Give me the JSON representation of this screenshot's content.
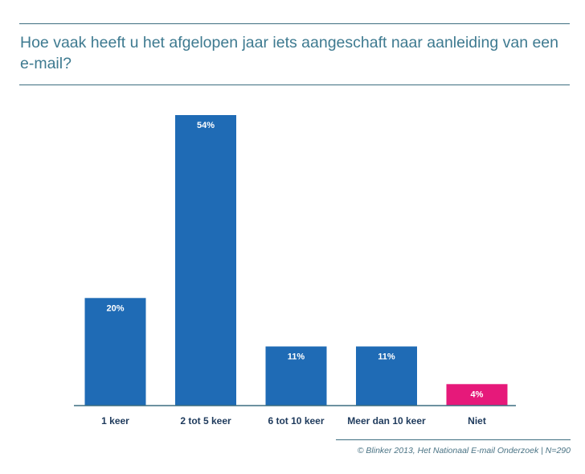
{
  "title": "Hoe vaak heeft u het afgelopen jaar iets aangeschaft naar aanleiding van een e-mail?",
  "source": "© Blinker 2013, Het Nationaal E-mail Onderzoek | N=290",
  "colors": {
    "bar": "#1f6bb5",
    "highlight": "#e6197a",
    "axis": "#3d6e80",
    "title": "#3e7a90"
  },
  "chart_data": {
    "type": "bar",
    "title": "Hoe vaak heeft u het afgelopen jaar iets aangeschaft naar aanleiding van een e-mail?",
    "xlabel": "",
    "ylabel": "",
    "categories": [
      "1 keer",
      "2 tot 5 keer",
      "6 tot 10 keer",
      "Meer dan 10 keer",
      "Niet"
    ],
    "values": [
      20,
      54,
      11,
      11,
      4
    ],
    "value_labels": [
      "20%",
      "54%",
      "11%",
      "11%",
      "4%"
    ],
    "bar_colors": [
      "#1f6bb5",
      "#1f6bb5",
      "#1f6bb5",
      "#1f6bb5",
      "#e6197a"
    ],
    "ylim": [
      0,
      54
    ],
    "grid": false,
    "legend": "none"
  }
}
